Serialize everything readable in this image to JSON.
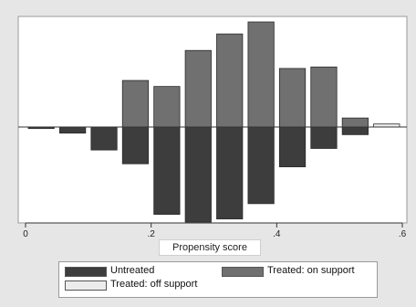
{
  "chart_data": {
    "type": "bar",
    "layout": "mirrored",
    "xlabel": "Propensity score",
    "xlim": [
      0,
      0.6
    ],
    "x_ticks": [
      {
        "value": 0,
        "label": "0"
      },
      {
        "value": 0.2,
        "label": ".2"
      },
      {
        "value": 0.4,
        "label": ".4"
      },
      {
        "value": 0.6,
        "label": ".6"
      }
    ],
    "grid": false,
    "legend_position": "bottom",
    "legend": [
      {
        "name": "Untreated",
        "color": "#3d3d3d"
      },
      {
        "name": "Treated: on support",
        "color": "#707070"
      },
      {
        "name": "Treated: off support",
        "color": "#ececec"
      }
    ],
    "bins": [
      {
        "center": 0.025,
        "untreated": 1,
        "treated_on": 0,
        "treated_off": 0
      },
      {
        "center": 0.075,
        "untreated": 4,
        "treated_on": 0,
        "treated_off": 0
      },
      {
        "center": 0.125,
        "untreated": 15,
        "treated_on": 0,
        "treated_off": 0
      },
      {
        "center": 0.175,
        "untreated": 24,
        "treated_on": 31,
        "treated_off": 0
      },
      {
        "center": 0.225,
        "untreated": 57,
        "treated_on": 27,
        "treated_off": 0
      },
      {
        "center": 0.275,
        "untreated": 62,
        "treated_on": 51,
        "treated_off": 0
      },
      {
        "center": 0.325,
        "untreated": 60,
        "treated_on": 62,
        "treated_off": 0
      },
      {
        "center": 0.375,
        "untreated": 50,
        "treated_on": 70,
        "treated_off": 0
      },
      {
        "center": 0.425,
        "untreated": 26,
        "treated_on": 39,
        "treated_off": 0
      },
      {
        "center": 0.475,
        "untreated": 14,
        "treated_on": 40,
        "treated_off": 0
      },
      {
        "center": 0.525,
        "untreated": 5,
        "treated_on": 6,
        "treated_off": 0
      },
      {
        "center": 0.575,
        "untreated": 0,
        "treated_on": 0,
        "treated_off": 2
      }
    ],
    "bin_width": 0.05
  }
}
